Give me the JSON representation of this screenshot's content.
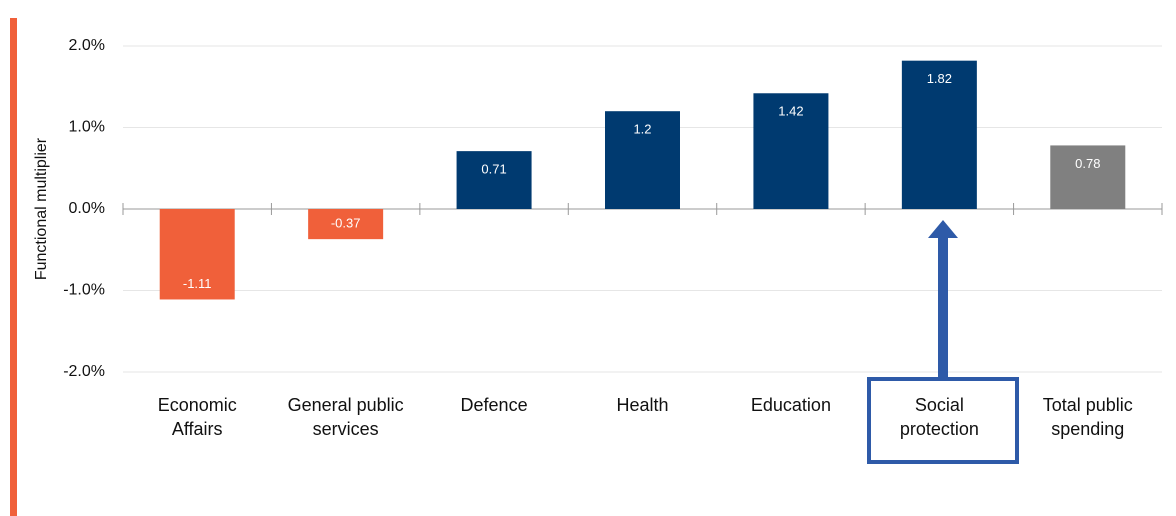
{
  "chart_data": {
    "type": "bar",
    "y_label": "Functional multiplier",
    "categories": [
      "Economic Affairs",
      "General public services",
      "Defence",
      "Health",
      "Education",
      "Social protection",
      "Total public spending"
    ],
    "values": [
      -1.11,
      -0.37,
      0.71,
      1.2,
      1.42,
      1.82,
      0.78
    ],
    "colors": [
      "#f0603a",
      "#f0603a",
      "#003a70",
      "#003a70",
      "#003a70",
      "#003a70",
      "#808080"
    ],
    "ylim": [
      -2,
      2
    ],
    "yticks": [
      {
        "value": -2,
        "label": "-2.0%"
      },
      {
        "value": -1,
        "label": "-1.0%"
      },
      {
        "value": 0,
        "label": "0.0%"
      },
      {
        "value": 1,
        "label": "1.0%"
      },
      {
        "value": 2,
        "label": "2.0%"
      }
    ],
    "grid": true
  }
}
